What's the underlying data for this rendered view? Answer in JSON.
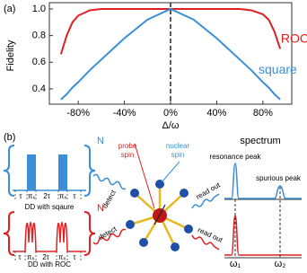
{
  "chart_data": {
    "type": "line",
    "panel_label": "(a)",
    "y_label": "Fidelity",
    "x_label": "Δ/ω",
    "x": [
      -95,
      -90,
      -85,
      -80,
      -70,
      -60,
      -40,
      -20,
      0,
      20,
      40,
      60,
      70,
      80,
      85,
      90,
      95
    ],
    "series": [
      {
        "name": "ROC",
        "color": "#e02020",
        "values": [
          0.66,
          0.8,
          0.9,
          0.95,
          0.99,
          1.0,
          1.0,
          1.0,
          1.0,
          1.0,
          1.0,
          1.0,
          0.99,
          0.96,
          0.92,
          0.83,
          0.7
        ]
      },
      {
        "name": "square",
        "color": "#3a8fd8",
        "values": [
          0.32,
          0.36,
          0.41,
          0.45,
          0.54,
          0.62,
          0.78,
          0.92,
          1.0,
          0.92,
          0.78,
          0.62,
          0.54,
          0.45,
          0.41,
          0.36,
          0.32
        ]
      }
    ],
    "xlim": [
      -105,
      105
    ],
    "ylim": [
      0.285,
      1.047
    ],
    "xticks": [
      {
        "value": -80,
        "label": "-80%"
      },
      {
        "value": -40,
        "label": "-40%"
      },
      {
        "value": 0,
        "label": "0%"
      },
      {
        "value": 40,
        "label": "40%"
      },
      {
        "value": 80,
        "label": "80%"
      }
    ],
    "yticks": [
      0.4,
      0.6,
      0.8,
      {
        "value": 1.0,
        "label": "1.0"
      }
    ],
    "vline": 0
  },
  "diagram": {
    "panel_label": "(b)",
    "repeat_square": "N",
    "repeat_roc": "N",
    "sequence_labels": [
      "τ",
      "πₓ",
      "2τ",
      "πₓ",
      "τ"
    ],
    "square_caption": "DD with sqaure",
    "roc_caption": "DD with ROC",
    "detect_square": "detect",
    "detect_roc": "detect",
    "probe_spin": [
      "probe",
      "spin"
    ],
    "nuclear_spin": [
      "nuclear",
      "spin"
    ],
    "readout_square": "read out",
    "readout_roc": "read out",
    "spectrum": "spectrum",
    "resonance_peak": "resonance peak",
    "spurious_peak": "spurious peak",
    "omega1": "ω₁",
    "omega2": "ω₂"
  }
}
